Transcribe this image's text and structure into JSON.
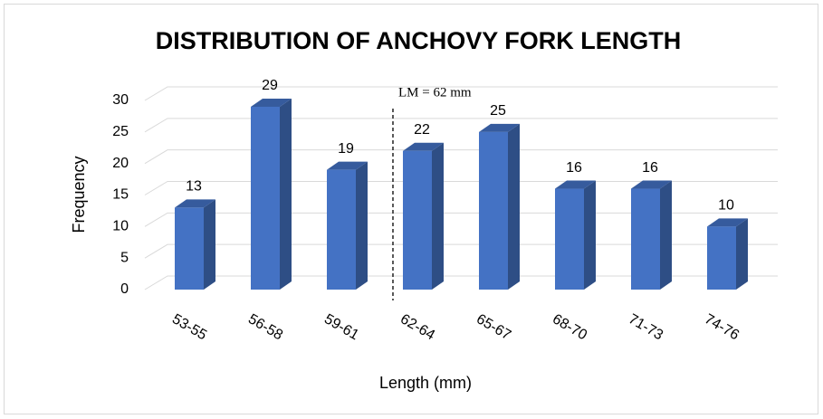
{
  "chart_data": {
    "type": "bar",
    "title": "DISTRIBUTION OF ANCHOVY FORK LENGTH",
    "categories": [
      "53-55",
      "56-58",
      "59-61",
      "62-64",
      "65-67",
      "68-70",
      "71-73",
      "74-76"
    ],
    "values": [
      13,
      29,
      19,
      22,
      25,
      16,
      16,
      10
    ],
    "color": "#4472c4",
    "xlabel": "Length (mm)",
    "ylabel": "Frequency",
    "annotation": "LM = 62 mm",
    "ylim": [
      0,
      30
    ],
    "yticks": [
      0,
      5,
      10,
      15,
      20,
      25,
      30
    ],
    "grid": true
  }
}
